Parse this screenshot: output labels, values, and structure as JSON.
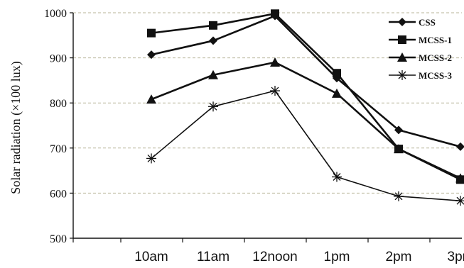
{
  "chart_data": {
    "type": "line",
    "categories": [
      "10am",
      "11am",
      "12noon",
      "1pm",
      "2pm",
      "3pm"
    ],
    "ylabel": "Solar radiation (×100 lux)",
    "ylim": [
      500,
      1000
    ],
    "yticks": [
      "500",
      "600",
      "700",
      "800",
      "900",
      "1000"
    ],
    "grid": true,
    "legend_position": "top-right",
    "series": [
      {
        "name": "CSS",
        "marker": "diamond",
        "values": [
          907,
          938,
          993,
          855,
          740,
          703
        ]
      },
      {
        "name": "MCSS-1",
        "marker": "square",
        "values": [
          955,
          972,
          998,
          866,
          698,
          630
        ]
      },
      {
        "name": "MCSS-2",
        "marker": "triangle",
        "values": [
          808,
          862,
          890,
          821,
          698,
          633
        ]
      },
      {
        "name": "MCSS-3",
        "marker": "asterisk",
        "values": [
          677,
          792,
          827,
          636,
          593,
          583
        ]
      }
    ]
  }
}
